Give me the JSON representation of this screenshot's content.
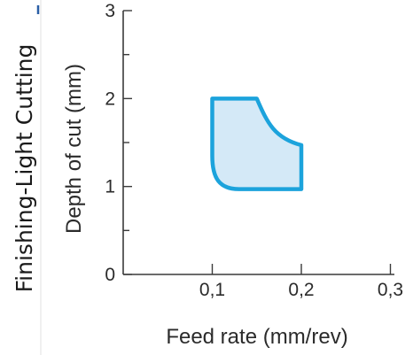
{
  "side_label": "Finishing-Light Cutting",
  "chart_data": {
    "type": "area",
    "title": "",
    "xlabel": "Feed rate (mm/rev)",
    "ylabel": "Depth of cut (mm)",
    "xlim": [
      0,
      0.3
    ],
    "ylim": [
      0,
      3
    ],
    "x_ticks": [
      0.1,
      0.2,
      0.3
    ],
    "x_tick_labels": [
      "0,1",
      "0,2",
      "0,3"
    ],
    "y_ticks": [
      0,
      1,
      2,
      3
    ],
    "y_tick_labels": [
      "0",
      "1",
      "2",
      "3"
    ],
    "grid": false,
    "region": {
      "name": "",
      "polygon": [
        [
          0.1,
          2.0
        ],
        [
          0.15,
          2.0
        ],
        [
          0.2,
          1.47
        ],
        [
          0.2,
          0.97
        ],
        [
          0.13,
          0.97
        ],
        [
          0.1,
          1.35
        ]
      ]
    },
    "colors": {
      "fill": "#d4e9f7",
      "stroke": "#1ca3dc",
      "axis": "#3a3a3a"
    }
  }
}
